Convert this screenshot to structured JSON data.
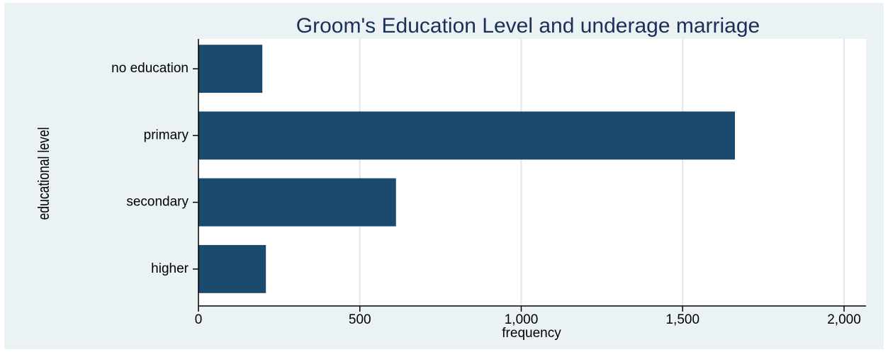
{
  "chart_data": {
    "type": "hbar",
    "title": "Groom's Education Level  and underage marriage",
    "x_label": "frequency",
    "y_label": "educational level",
    "categories": [
      "no education",
      "primary",
      "secondary",
      "higher"
    ],
    "values": [
      198,
      1662,
      612,
      209
    ],
    "color": "#1a4a6e",
    "xlim": [
      0,
      2000
    ],
    "xticks": [
      0,
      500,
      {
        "value": 1000,
        "label": "1,000"
      },
      {
        "value": 1500,
        "label": "1,500"
      },
      {
        "value": 2000,
        "label": "2,000"
      }
    ],
    "grid": true
  }
}
